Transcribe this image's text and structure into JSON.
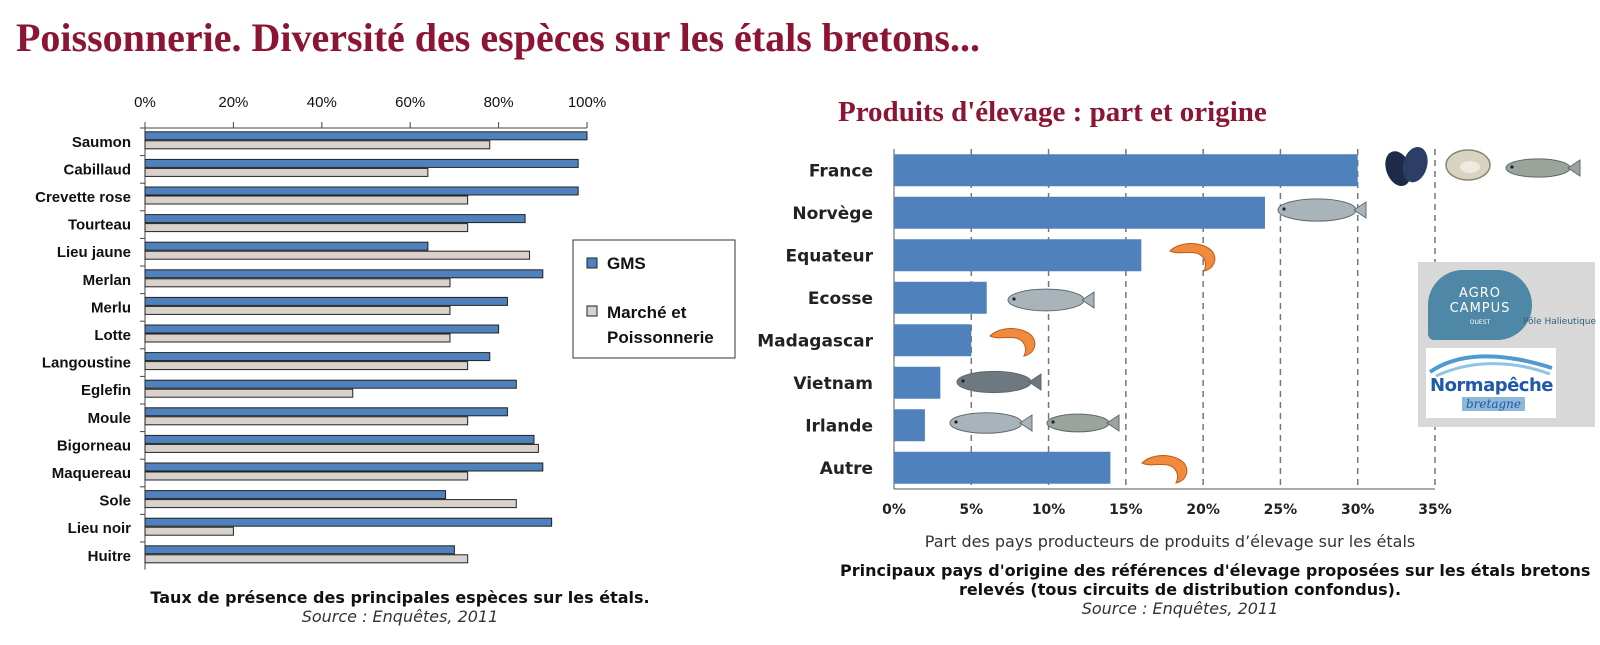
{
  "page": {
    "title": "Poissonnerie. Diversité des espèces sur les étals bretons...",
    "subtitle": "Produits d'élevage : part et origine"
  },
  "chart_data": [
    {
      "type": "bar",
      "orientation": "horizontal",
      "categories": [
        "Saumon",
        "Cabillaud",
        "Crevette rose",
        "Tourteau",
        "Lieu jaune",
        "Merlan",
        "Merlu",
        "Lotte",
        "Langoustine",
        "Eglefin",
        "Moule",
        "Bigorneau",
        "Maquereau",
        "Sole",
        "Lieu noir",
        "Huitre"
      ],
      "series": [
        {
          "name": "GMS",
          "color": "#4f81bd",
          "values": [
            100,
            98,
            98,
            86,
            64,
            90,
            82,
            80,
            78,
            84,
            82,
            88,
            90,
            68,
            92,
            70
          ]
        },
        {
          "name": "Marché et Poissonnerie",
          "color": "#d9d2cc",
          "values": [
            78,
            64,
            73,
            73,
            87,
            69,
            69,
            69,
            73,
            47,
            73,
            89,
            73,
            84,
            20,
            73
          ]
        }
      ],
      "xlim": [
        0,
        100
      ],
      "ticks": [
        "0%",
        "20%",
        "40%",
        "60%",
        "80%",
        "100%"
      ],
      "legend_position": "right",
      "grid": false,
      "caption": "Taux de présence des principales espèces sur les étals.",
      "source": "Source : Enquêtes, 2011"
    },
    {
      "type": "bar",
      "orientation": "horizontal",
      "categories": [
        "France",
        "Norvège",
        "Equateur",
        "Ecosse",
        "Madagascar",
        "Vietnam",
        "Irlande",
        "Autre"
      ],
      "values": [
        30,
        24,
        16,
        6,
        5,
        3,
        2,
        14
      ],
      "color": "#4f81bd",
      "xlim": [
        0,
        35
      ],
      "ticks": [
        "0%",
        "5%",
        "10%",
        "15%",
        "20%",
        "25%",
        "30%",
        "35%"
      ],
      "grid": true,
      "xlabel": "Part des pays producteurs de produits d’élevage sur les étals",
      "caption_line1": "Principaux pays d'origine des références d'élevage proposées sur les étals bretons",
      "caption_line2": "relevés (tous circuits de distribution confondus).",
      "source": "Source : Enquêtes, 2011"
    }
  ],
  "logos": {
    "agro_l1": "AGRO",
    "agro_l2": "CAMPUS",
    "agro_l3": "OUEST",
    "pole": "Pôle Halieutique",
    "norma_l1": "Normapêche",
    "norma_l2": "bretagne"
  }
}
